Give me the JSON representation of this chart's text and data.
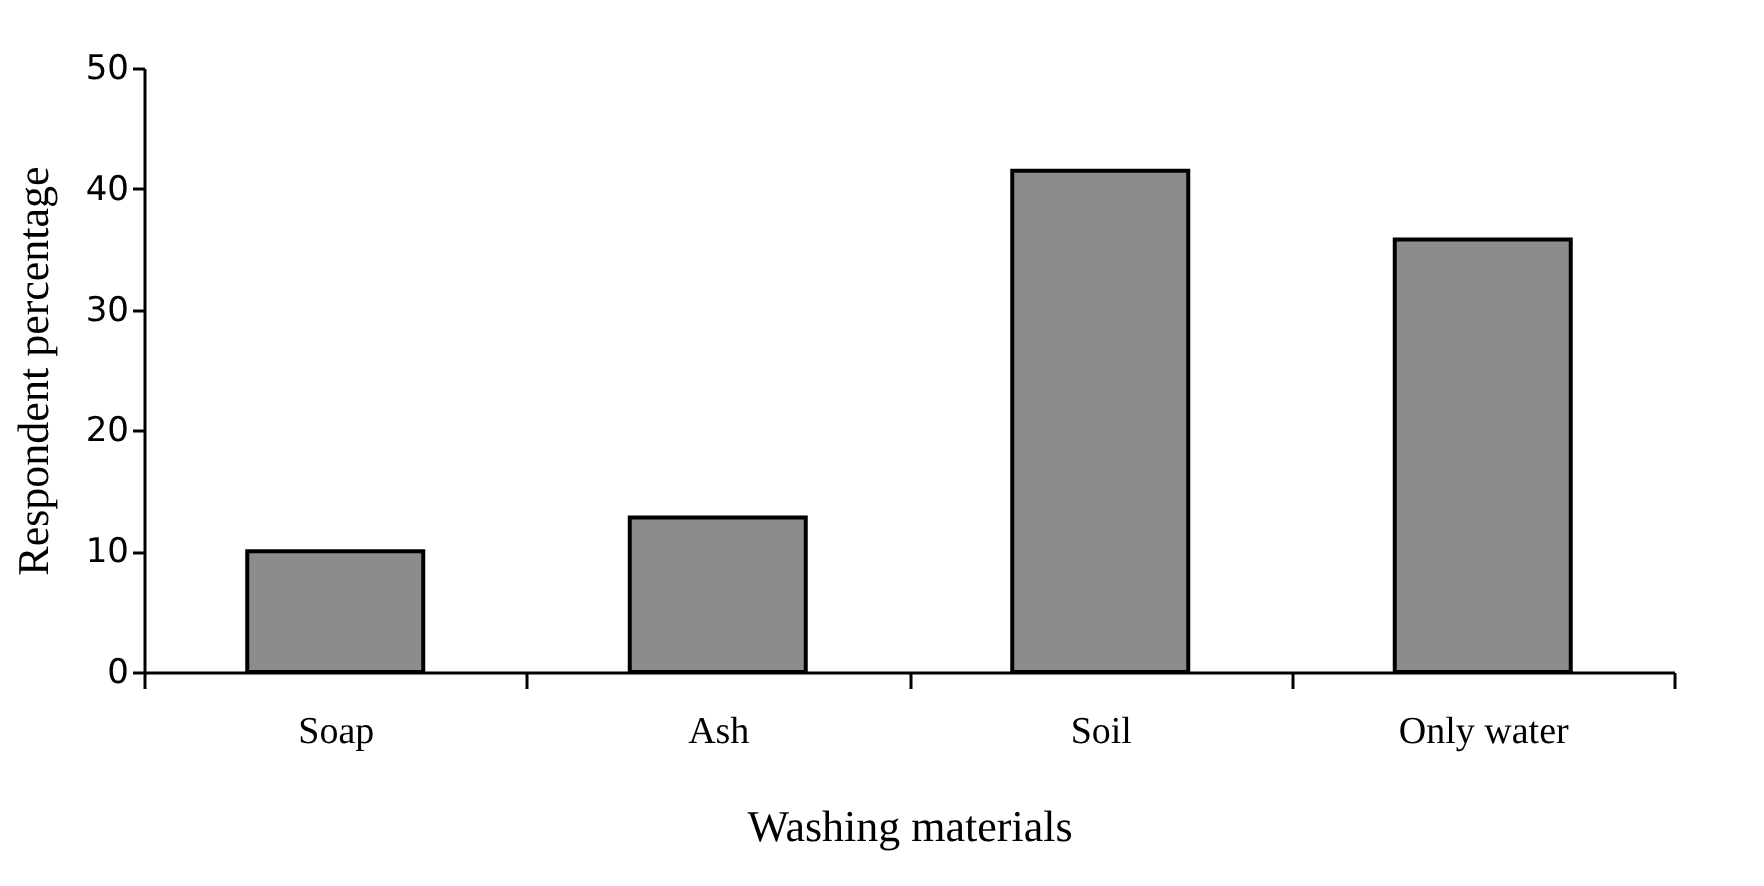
{
  "chart_data": {
    "type": "bar",
    "xlabel": "Washing materials",
    "ylabel": "Respondent percentage",
    "categories": [
      "Soap",
      "Ash",
      "Soil",
      "Only water"
    ],
    "values": [
      10,
      12.8,
      41.5,
      35.8
    ],
    "color": "#8c8c8c",
    "ylim": [
      0,
      50
    ],
    "yticks": [
      0,
      10,
      20,
      30,
      40,
      50
    ],
    "grid": false
  }
}
